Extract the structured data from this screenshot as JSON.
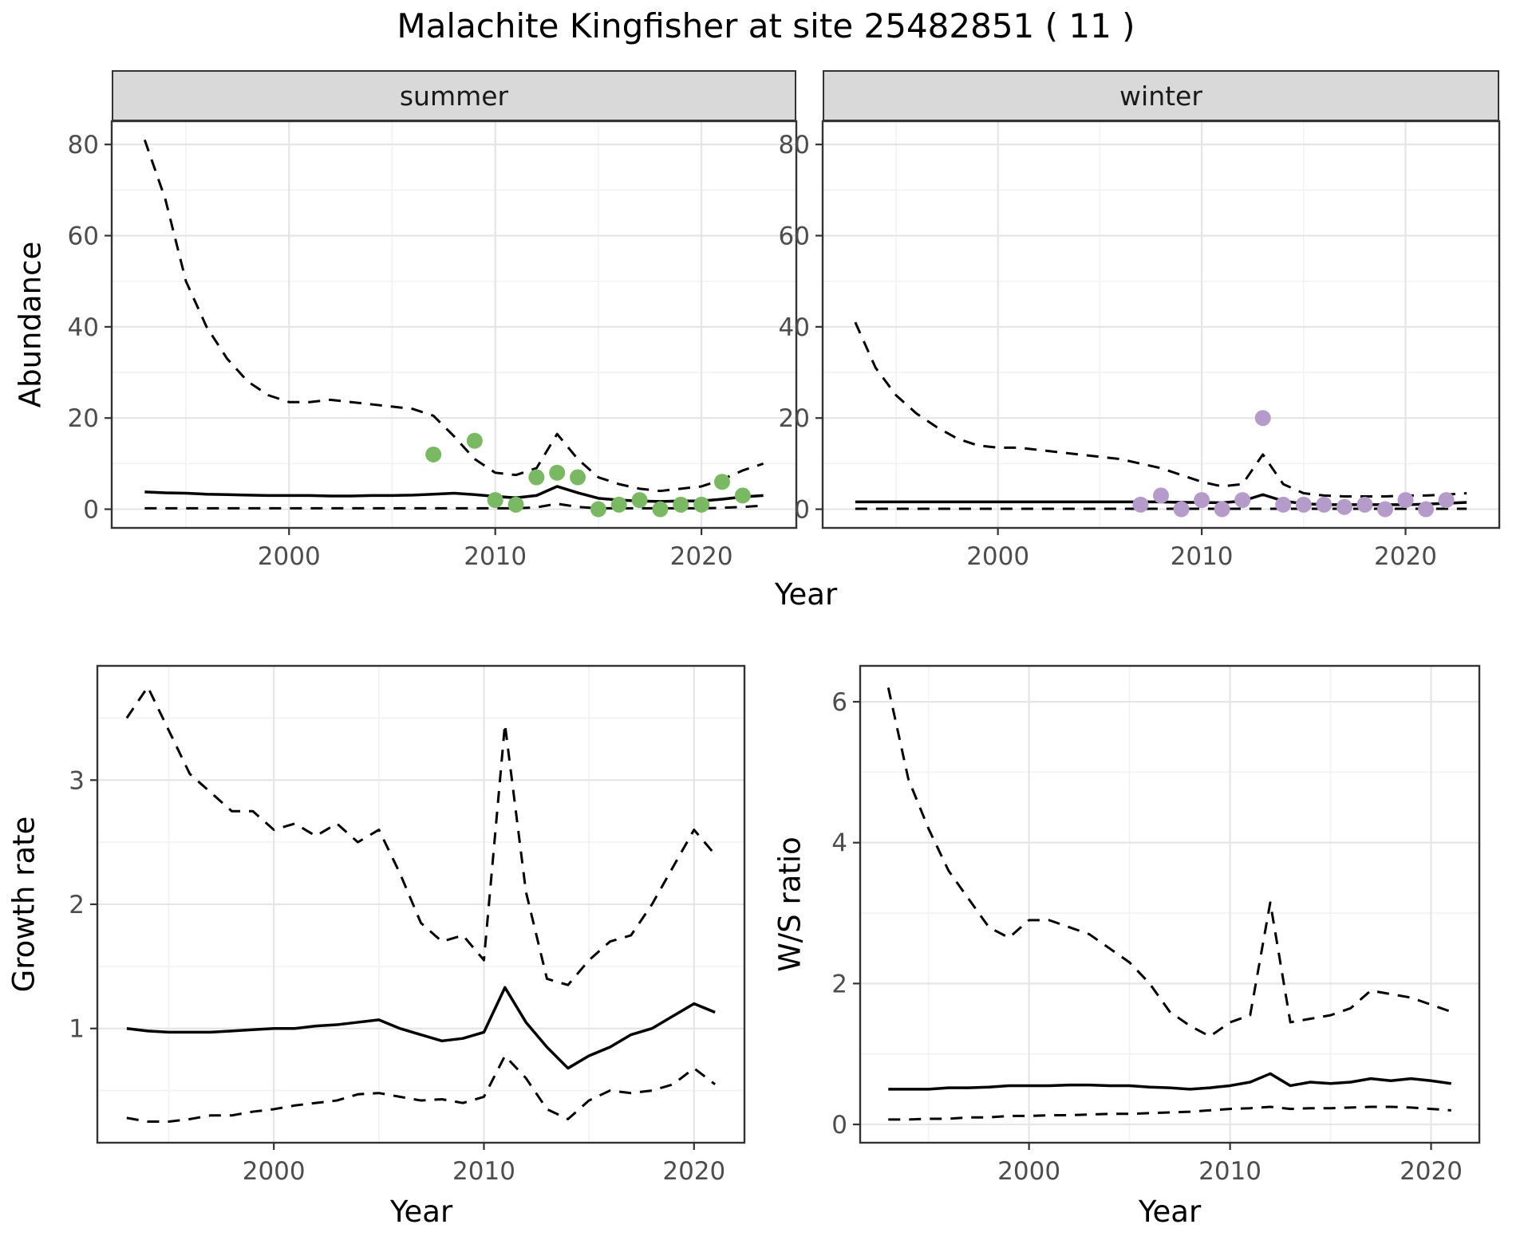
{
  "title": "Malachite Kingfisher at site 25482851 ( 11 )",
  "top_row": {
    "facets": [
      "summer",
      "winter"
    ],
    "ylabel": "Abundance",
    "xlabel": "Year"
  },
  "bottom_left": {
    "ylabel": "Growth rate",
    "xlabel": "Year"
  },
  "bottom_right": {
    "ylabel": "W/S ratio",
    "xlabel": "Year"
  },
  "colors": {
    "summer_point": "#78b962",
    "winter_point": "#b59bc9",
    "line": "#000000",
    "panel_border": "#333333",
    "strip_bg": "#d9d9d9",
    "grid_major": "#e5e5e5",
    "grid_minor": "#f2f2f2",
    "tick_label": "#4d4d4d"
  },
  "chart_data": [
    {
      "id": "abundance-summer",
      "type": "line",
      "facet": "summer",
      "xlabel": "Year",
      "ylabel": "Abundance",
      "xlim": [
        1991.4,
        2024.6
      ],
      "ylim": [
        -4.1,
        85.1
      ],
      "xticks": [
        2000,
        2010,
        2020
      ],
      "yticks": [
        0,
        20,
        40,
        60,
        80
      ],
      "xminor": [
        1995,
        2005,
        2015
      ],
      "yminor": [
        10,
        30,
        50,
        70
      ],
      "x": [
        1993,
        1994,
        1995,
        1996,
        1997,
        1998,
        1999,
        2000,
        2001,
        2002,
        2003,
        2004,
        2005,
        2006,
        2007,
        2008,
        2009,
        2010,
        2011,
        2012,
        2013,
        2014,
        2015,
        2016,
        2017,
        2018,
        2019,
        2020,
        2021,
        2022,
        2023
      ],
      "series": [
        {
          "name": "upper-ci",
          "style": "dashed",
          "values": [
            81,
            68,
            50,
            40,
            33,
            28,
            25,
            23.5,
            23.5,
            24,
            23.5,
            23,
            22.5,
            22,
            20.5,
            16,
            11,
            8,
            7.5,
            9,
            16.5,
            11,
            7,
            5.5,
            4.5,
            4,
            4.5,
            5,
            6.5,
            8.5,
            10
          ]
        },
        {
          "name": "median",
          "style": "solid",
          "values": [
            3.8,
            3.6,
            3.5,
            3.3,
            3.2,
            3.1,
            3.0,
            3.0,
            3.0,
            2.9,
            2.9,
            3.0,
            3.0,
            3.1,
            3.3,
            3.5,
            3.2,
            2.8,
            2.5,
            3.0,
            5.0,
            3.6,
            2.4,
            2.0,
            1.8,
            1.7,
            1.8,
            1.8,
            2.2,
            2.7,
            3.0
          ]
        },
        {
          "name": "lower-ci",
          "style": "dashed",
          "values": [
            0.2,
            0.2,
            0.2,
            0.2,
            0.2,
            0.2,
            0.2,
            0.2,
            0.2,
            0.2,
            0.2,
            0.2,
            0.2,
            0.2,
            0.2,
            0.2,
            0.2,
            0.2,
            0.2,
            0.4,
            1.2,
            0.5,
            0.2,
            0.2,
            0.2,
            0.2,
            0.2,
            0.2,
            0.3,
            0.5,
            0.8
          ]
        },
        {
          "name": "observed-points",
          "style": "points",
          "color": "#78b962",
          "x": [
            2007,
            2009,
            2010,
            2011,
            2012,
            2013,
            2014,
            2015,
            2016,
            2017,
            2018,
            2019,
            2020,
            2021,
            2022
          ],
          "values": [
            12,
            15,
            2,
            1,
            7,
            8,
            7,
            0,
            1,
            2,
            0,
            1,
            1,
            6,
            3
          ]
        }
      ]
    },
    {
      "id": "abundance-winter",
      "type": "line",
      "facet": "winter",
      "xlabel": "Year",
      "ylabel": "Abundance",
      "xlim": [
        1991.4,
        2024.6
      ],
      "ylim": [
        -4.1,
        85.1
      ],
      "xticks": [
        2000,
        2010,
        2020
      ],
      "yticks": [
        0,
        20,
        40,
        60,
        80
      ],
      "xminor": [
        1995,
        2005,
        2015
      ],
      "yminor": [
        10,
        30,
        50,
        70
      ],
      "x": [
        1993,
        1994,
        1995,
        1996,
        1997,
        1998,
        1999,
        2000,
        2001,
        2002,
        2003,
        2004,
        2005,
        2006,
        2007,
        2008,
        2009,
        2010,
        2011,
        2012,
        2013,
        2014,
        2015,
        2016,
        2017,
        2018,
        2019,
        2020,
        2021,
        2022,
        2023
      ],
      "series": [
        {
          "name": "upper-ci",
          "style": "dashed",
          "values": [
            41,
            31,
            25,
            21,
            18,
            15.5,
            14,
            13.5,
            13.5,
            13,
            12.5,
            12,
            11.5,
            11,
            10,
            9,
            7.5,
            6,
            5,
            5.5,
            12,
            5.5,
            3.5,
            3,
            2.8,
            2.8,
            2.8,
            3,
            3,
            3.2,
            3.5
          ]
        },
        {
          "name": "median",
          "style": "solid",
          "values": [
            1.6,
            1.6,
            1.6,
            1.6,
            1.6,
            1.6,
            1.6,
            1.6,
            1.6,
            1.6,
            1.6,
            1.6,
            1.6,
            1.6,
            1.6,
            1.6,
            1.5,
            1.5,
            1.4,
            1.8,
            3.2,
            1.8,
            1.2,
            1.0,
            1.0,
            1.0,
            1.0,
            1.0,
            1.1,
            1.3,
            1.5
          ]
        },
        {
          "name": "lower-ci",
          "style": "dashed",
          "values": [
            0.1,
            0.1,
            0.1,
            0.1,
            0.1,
            0.1,
            0.1,
            0.1,
            0.1,
            0.1,
            0.1,
            0.1,
            0.1,
            0.1,
            0.1,
            0.1,
            0.1,
            0.1,
            0.1,
            0.1,
            0.1,
            0.1,
            0.1,
            0.1,
            0.1,
            0.1,
            0.1,
            0.1,
            0.1,
            0.1,
            0.1
          ]
        },
        {
          "name": "observed-points",
          "style": "points",
          "color": "#b59bc9",
          "x": [
            2007,
            2008,
            2009,
            2010,
            2011,
            2012,
            2013,
            2014,
            2015,
            2016,
            2017,
            2018,
            2019,
            2020,
            2021,
            2022
          ],
          "values": [
            1,
            3,
            0,
            2,
            0,
            2,
            20,
            1,
            1,
            1,
            0.5,
            1,
            0,
            2,
            0,
            2
          ]
        }
      ]
    },
    {
      "id": "growth-rate",
      "type": "line",
      "xlabel": "Year",
      "ylabel": "Growth rate",
      "xlim": [
        1991.6,
        2022.4
      ],
      "ylim": [
        0.08,
        3.92
      ],
      "xticks": [
        2000,
        2010,
        2020
      ],
      "yticks": [
        1,
        2,
        3
      ],
      "xminor": [
        1995,
        2005,
        2015
      ],
      "yminor": [
        0.5,
        1.5,
        2.5,
        3.5
      ],
      "x": [
        1993,
        1994,
        1995,
        1996,
        1997,
        1998,
        1999,
        2000,
        2001,
        2002,
        2003,
        2004,
        2005,
        2006,
        2007,
        2008,
        2009,
        2010,
        2011,
        2012,
        2013,
        2014,
        2015,
        2016,
        2017,
        2018,
        2019,
        2020,
        2021
      ],
      "series": [
        {
          "name": "upper-ci",
          "style": "dashed",
          "values": [
            3.5,
            3.75,
            3.4,
            3.05,
            2.9,
            2.75,
            2.75,
            2.6,
            2.65,
            2.55,
            2.65,
            2.5,
            2.6,
            2.25,
            1.85,
            1.7,
            1.75,
            1.55,
            3.45,
            2.1,
            1.4,
            1.35,
            1.55,
            1.7,
            1.75,
            2.0,
            2.3,
            2.6,
            2.4
          ]
        },
        {
          "name": "median",
          "style": "solid",
          "values": [
            1.0,
            0.98,
            0.97,
            0.97,
            0.97,
            0.98,
            0.99,
            1.0,
            1.0,
            1.02,
            1.03,
            1.05,
            1.07,
            1.0,
            0.95,
            0.9,
            0.92,
            0.97,
            1.33,
            1.05,
            0.85,
            0.68,
            0.78,
            0.85,
            0.95,
            1.0,
            1.1,
            1.2,
            1.13
          ]
        },
        {
          "name": "lower-ci",
          "style": "dashed",
          "values": [
            0.28,
            0.25,
            0.25,
            0.27,
            0.3,
            0.3,
            0.33,
            0.35,
            0.38,
            0.4,
            0.42,
            0.47,
            0.48,
            0.45,
            0.42,
            0.43,
            0.4,
            0.45,
            0.78,
            0.6,
            0.35,
            0.27,
            0.42,
            0.5,
            0.48,
            0.5,
            0.55,
            0.68,
            0.55
          ]
        }
      ]
    },
    {
      "id": "ws-ratio",
      "type": "line",
      "xlabel": "Year",
      "ylabel": "W/S ratio",
      "xlim": [
        1991.6,
        2022.4
      ],
      "ylim": [
        -0.26,
        6.51
      ],
      "xticks": [
        2000,
        2010,
        2020
      ],
      "yticks": [
        0,
        2,
        4,
        6
      ],
      "xminor": [
        1995,
        2005,
        2015
      ],
      "yminor": [
        1,
        3,
        5
      ],
      "x": [
        1993,
        1994,
        1995,
        1996,
        1997,
        1998,
        1999,
        2000,
        2001,
        2002,
        2003,
        2004,
        2005,
        2006,
        2007,
        2008,
        2009,
        2010,
        2011,
        2012,
        2013,
        2014,
        2015,
        2016,
        2017,
        2018,
        2019,
        2020,
        2021
      ],
      "series": [
        {
          "name": "upper-ci",
          "style": "dashed",
          "values": [
            6.2,
            4.9,
            4.2,
            3.6,
            3.2,
            2.8,
            2.65,
            2.9,
            2.9,
            2.8,
            2.7,
            2.5,
            2.3,
            2.0,
            1.6,
            1.4,
            1.25,
            1.45,
            1.55,
            3.15,
            1.45,
            1.5,
            1.55,
            1.65,
            1.9,
            1.85,
            1.8,
            1.7,
            1.6
          ]
        },
        {
          "name": "median",
          "style": "solid",
          "values": [
            0.5,
            0.5,
            0.5,
            0.52,
            0.52,
            0.53,
            0.55,
            0.55,
            0.55,
            0.56,
            0.56,
            0.55,
            0.55,
            0.53,
            0.52,
            0.5,
            0.52,
            0.55,
            0.6,
            0.72,
            0.55,
            0.6,
            0.58,
            0.6,
            0.65,
            0.62,
            0.65,
            0.62,
            0.58
          ]
        },
        {
          "name": "lower-ci",
          "style": "dashed",
          "values": [
            0.07,
            0.07,
            0.08,
            0.08,
            0.1,
            0.1,
            0.12,
            0.12,
            0.13,
            0.13,
            0.14,
            0.15,
            0.15,
            0.16,
            0.17,
            0.18,
            0.2,
            0.22,
            0.23,
            0.25,
            0.22,
            0.23,
            0.23,
            0.24,
            0.25,
            0.25,
            0.24,
            0.22,
            0.2
          ]
        }
      ]
    }
  ]
}
